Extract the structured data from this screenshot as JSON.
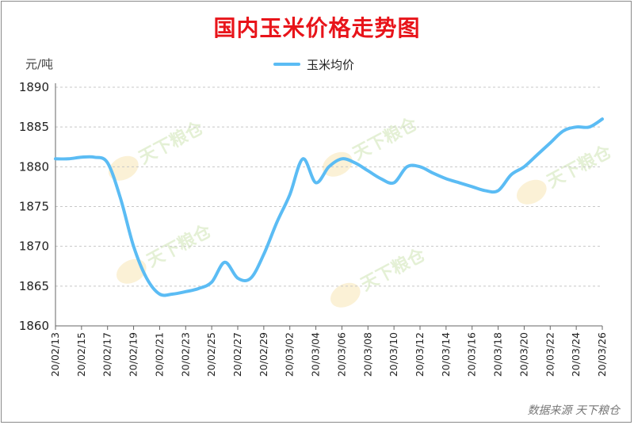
{
  "chart_data": {
    "type": "line",
    "title": "国内玉米价格走势图",
    "ylabel": "元/吨",
    "xlabel": "",
    "ylim": [
      1860,
      1890
    ],
    "yticks": [
      1860,
      1865,
      1870,
      1875,
      1880,
      1885,
      1890
    ],
    "grid": true,
    "legend_position": "top-center",
    "x": [
      "20/02/13",
      "20/02/14",
      "20/02/15",
      "20/02/16",
      "20/02/17",
      "20/02/18",
      "20/02/19",
      "20/02/20",
      "20/02/21",
      "20/02/22",
      "20/02/23",
      "20/02/24",
      "20/02/25",
      "20/02/26",
      "20/02/27",
      "20/02/28",
      "20/02/29",
      "20/03/01",
      "20/03/02",
      "20/03/03",
      "20/03/04",
      "20/03/05",
      "20/03/06",
      "20/03/07",
      "20/03/08",
      "20/03/09",
      "20/03/10",
      "20/03/11",
      "20/03/12",
      "20/03/13",
      "20/03/14",
      "20/03/15",
      "20/03/16",
      "20/03/17",
      "20/03/18",
      "20/03/19",
      "20/03/20",
      "20/03/21",
      "20/03/22",
      "20/03/23",
      "20/03/24",
      "20/03/25",
      "20/03/26"
    ],
    "x_tick_labels": [
      "20/02/13",
      "20/02/15",
      "20/02/17",
      "20/02/19",
      "20/02/21",
      "20/02/23",
      "20/02/25",
      "20/02/27",
      "20/02/29",
      "20/03/02",
      "20/03/04",
      "20/03/06",
      "20/03/08",
      "20/03/10",
      "20/03/12",
      "20/03/14",
      "20/03/16",
      "20/03/18",
      "20/03/20",
      "20/03/22",
      "20/03/24",
      "20/03/26"
    ],
    "series": [
      {
        "name": "玉米均价",
        "color": "#5bbcf4",
        "values": [
          1881,
          1881,
          1881.2,
          1881.2,
          1880.5,
          1876,
          1870,
          1866,
          1864,
          1864,
          1864.3,
          1864.7,
          1865.5,
          1868,
          1866,
          1866,
          1869,
          1873,
          1876.5,
          1881,
          1878,
          1880,
          1881,
          1880.5,
          1879.5,
          1878.5,
          1878,
          1880,
          1880,
          1879.2,
          1878.5,
          1878,
          1877.5,
          1877,
          1877,
          1879,
          1880,
          1881.5,
          1883,
          1884.5,
          1885,
          1885,
          1886
        ]
      }
    ]
  },
  "watermark": "天下粮仓",
  "source": "数据来源 天下粮仓"
}
